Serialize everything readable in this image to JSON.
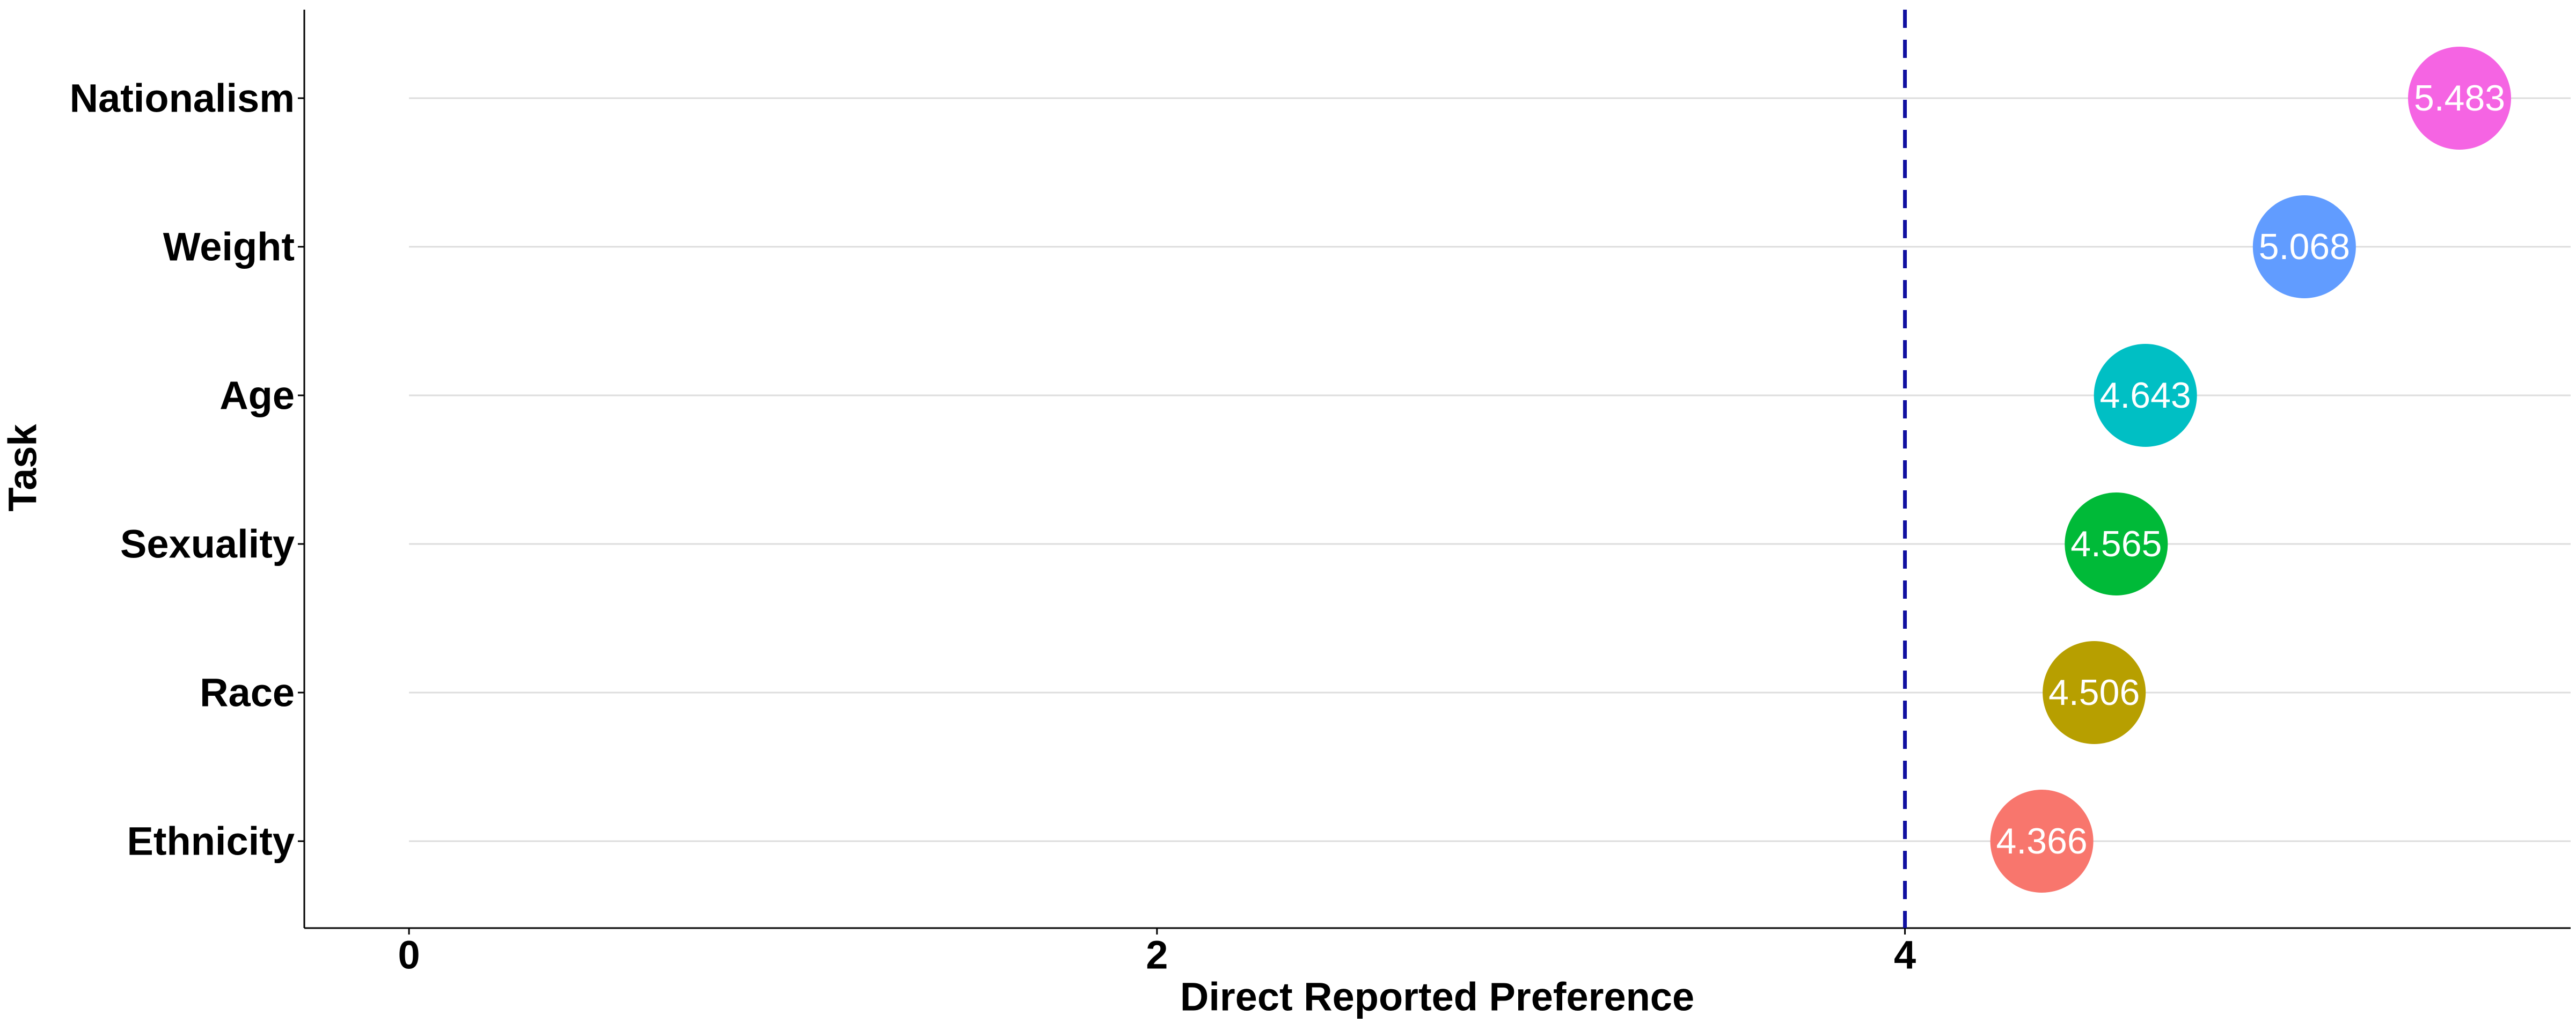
{
  "chart_data": {
    "type": "scatter",
    "style": "lollipop",
    "xlabel": "Direct Reported Preference",
    "ylabel": "Task",
    "xlim": [
      -0.28,
      5.78
    ],
    "x_ticks": [
      0,
      2,
      4
    ],
    "categories": [
      "Nationalism",
      "Weight",
      "Age",
      "Sexuality",
      "Race",
      "Ethnicity"
    ],
    "values": [
      5.483,
      5.068,
      4.643,
      4.565,
      4.506,
      4.366
    ],
    "value_labels": [
      "5.483",
      "5.068",
      "4.643",
      "4.565",
      "4.506",
      "4.366"
    ],
    "colors": [
      "#F564E3",
      "#619CFF",
      "#00BFC4",
      "#00BA38",
      "#B79F00",
      "#F8766D"
    ],
    "reference_line": {
      "x": 4,
      "style": "dashed",
      "color": "#1010A0"
    },
    "grid": {
      "horizontal_guides": true,
      "vertical": false
    },
    "guide_color": "#DDDDDD",
    "legend": "none"
  }
}
